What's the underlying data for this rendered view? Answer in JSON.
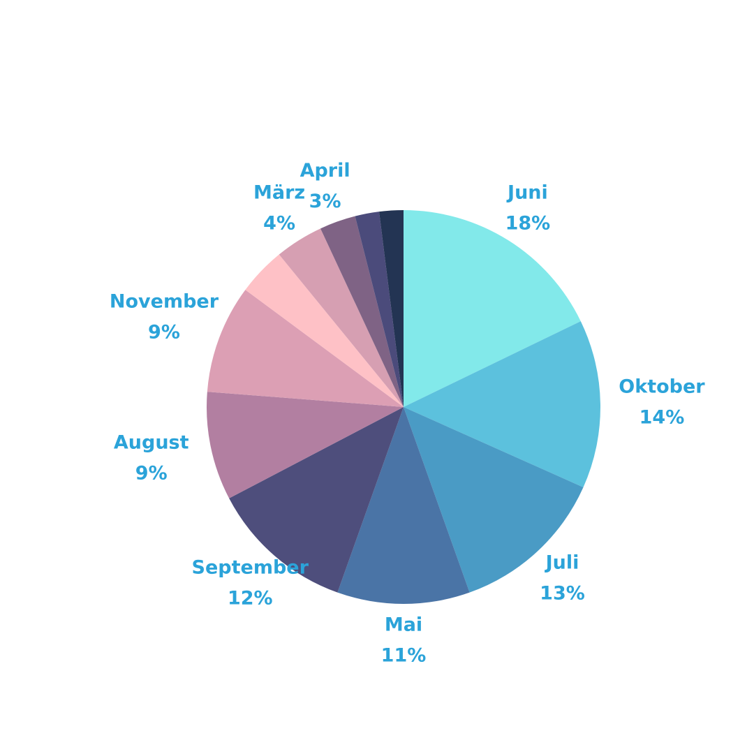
{
  "chart_data": {
    "type": "pie",
    "categories": [
      "Juni",
      "Oktober",
      "Juli",
      "Mai",
      "September",
      "August",
      "November",
      null,
      "März",
      "April",
      null,
      null
    ],
    "values": [
      18,
      14,
      13,
      11,
      12,
      9,
      9,
      4,
      4,
      3,
      2,
      2
    ],
    "value_labels": [
      "18%",
      "14%",
      "13%",
      "11%",
      "12%",
      "9%",
      "9%",
      null,
      "4%",
      "3%",
      null,
      null
    ],
    "colors": [
      "#82e9ea",
      "#5cc1dd",
      "#4a9bc5",
      "#4a74a6",
      "#4e4e7c",
      "#b27fa1",
      "#dc9fb4",
      "#fec1c6",
      "#d69fb2",
      "#7f6385",
      "#4b4b7b",
      "#233453"
    ]
  }
}
